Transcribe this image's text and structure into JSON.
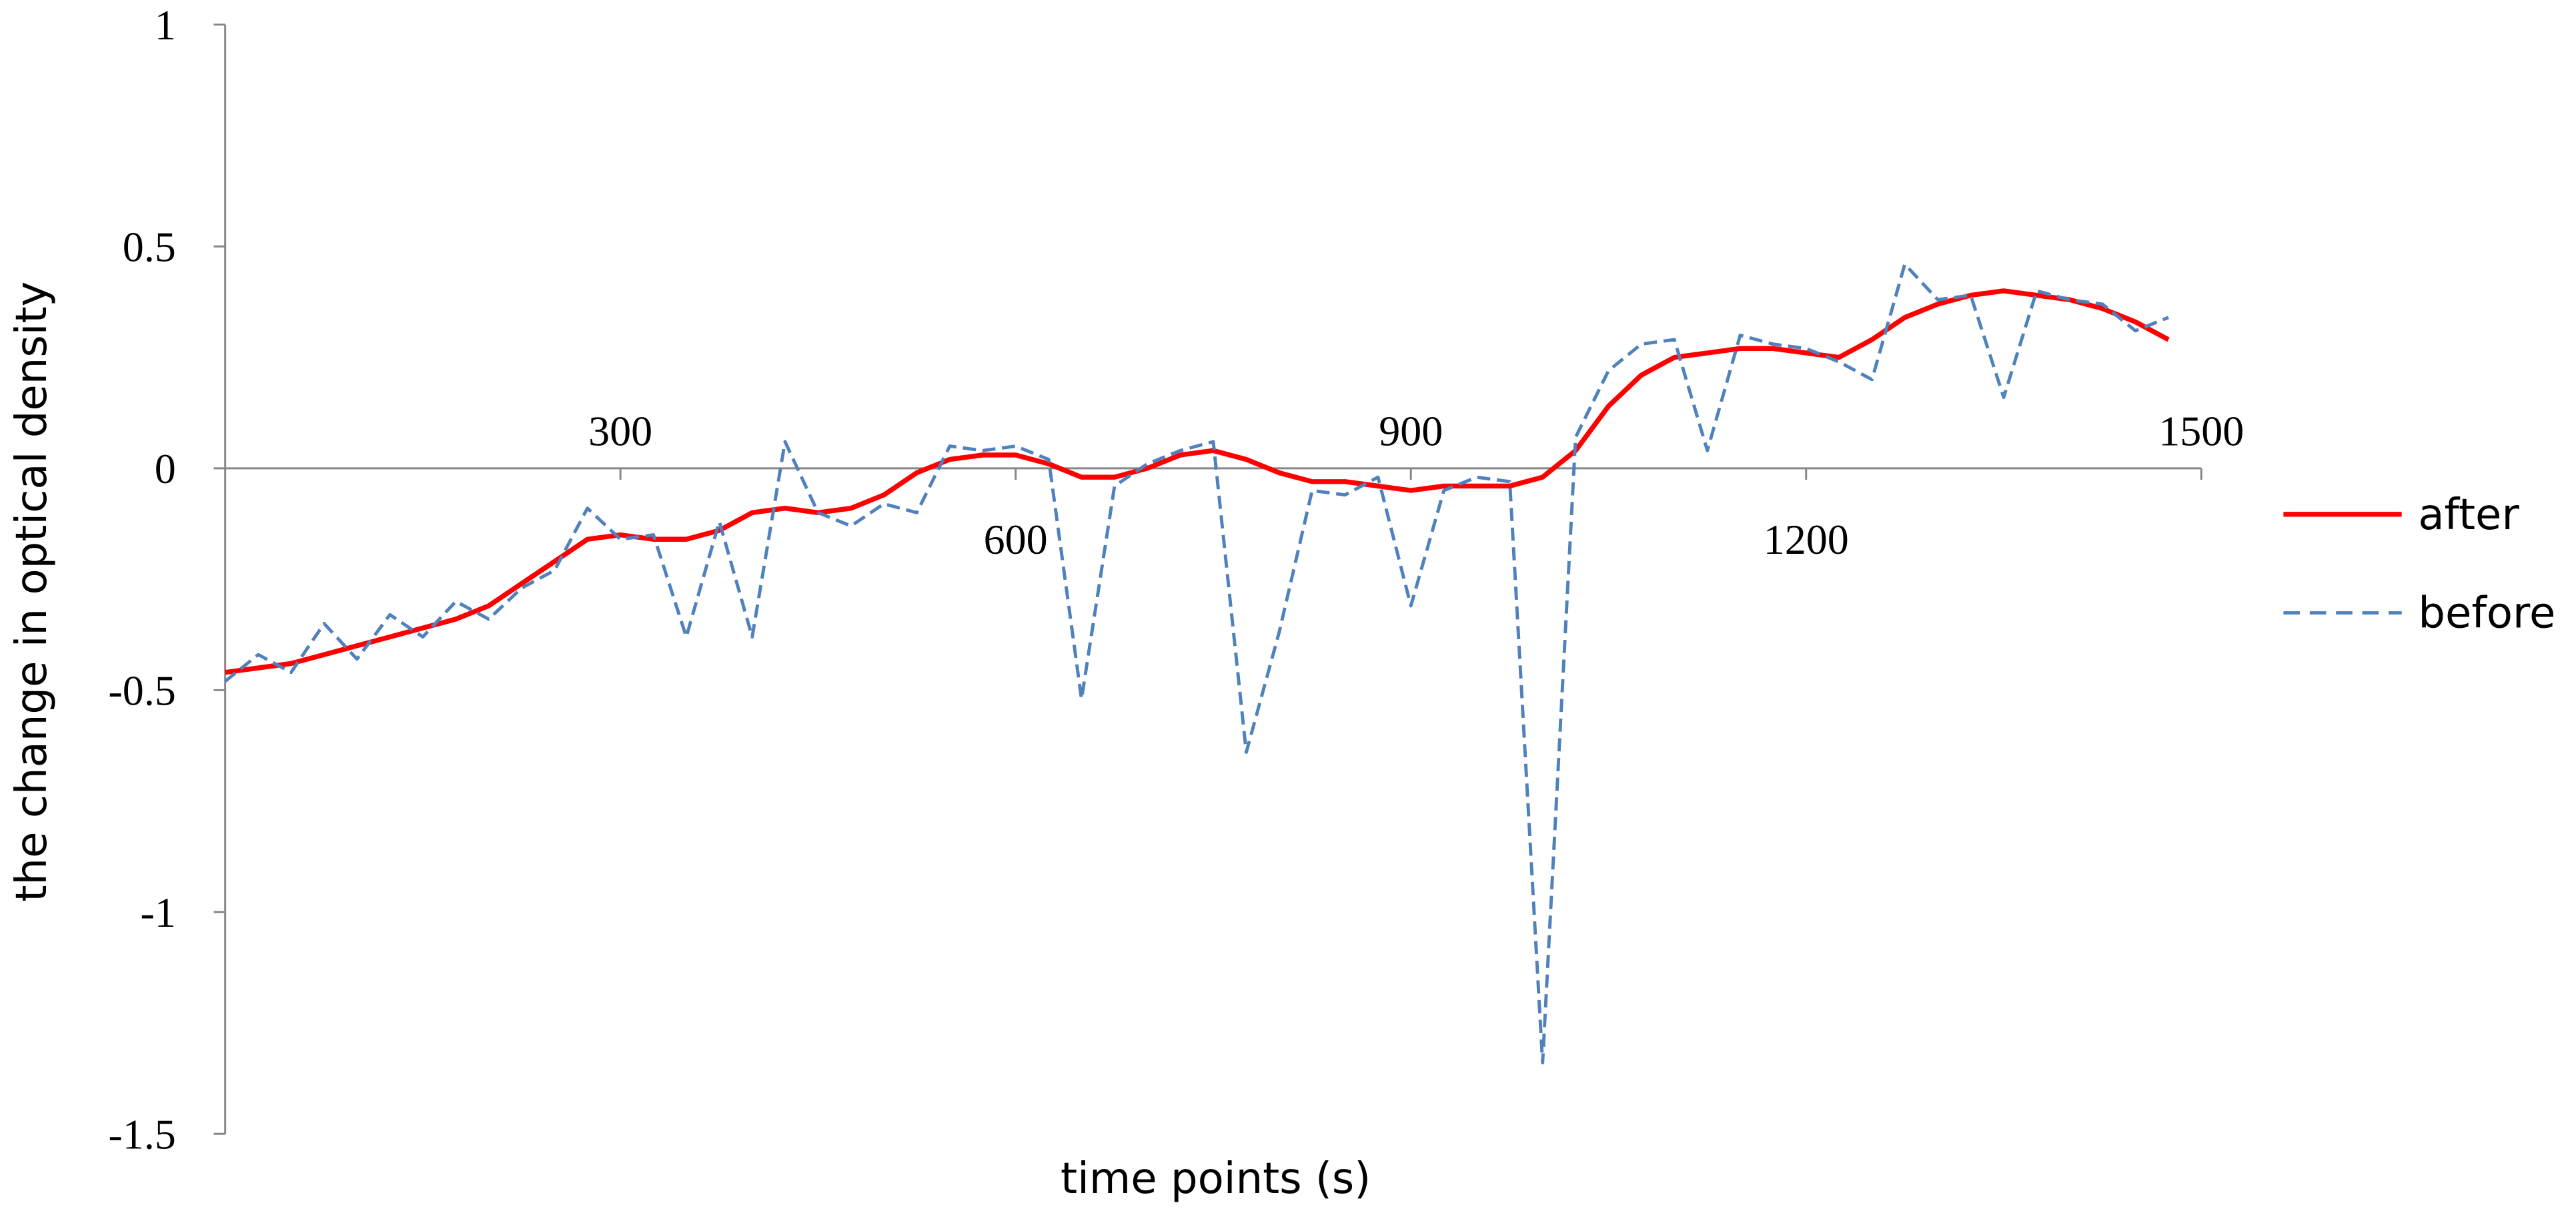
{
  "chart_data": {
    "type": "line",
    "x_label": "time points (s)",
    "y_label": "the change in optical density",
    "x": [
      0,
      25,
      50,
      75,
      100,
      125,
      150,
      175,
      200,
      225,
      250,
      275,
      300,
      325,
      350,
      375,
      400,
      425,
      450,
      475,
      500,
      525,
      550,
      575,
      600,
      625,
      650,
      675,
      700,
      725,
      750,
      775,
      800,
      825,
      850,
      875,
      900,
      925,
      950,
      975,
      1000,
      1025,
      1050,
      1075,
      1100,
      1125,
      1150,
      1175,
      1200,
      1225,
      1250,
      1275,
      1300,
      1325,
      1350,
      1375,
      1400,
      1425,
      1450,
      1475
    ],
    "series": [
      {
        "name": "after",
        "color": "#ff0000",
        "dash": false,
        "values": [
          -0.46,
          -0.45,
          -0.44,
          -0.42,
          -0.4,
          -0.38,
          -0.36,
          -0.34,
          -0.31,
          -0.26,
          -0.21,
          -0.16,
          -0.15,
          -0.16,
          -0.16,
          -0.14,
          -0.1,
          -0.09,
          -0.1,
          -0.09,
          -0.06,
          -0.01,
          0.02,
          0.03,
          0.03,
          0.01,
          -0.02,
          -0.02,
          0,
          0.03,
          0.04,
          0.02,
          -0.01,
          -0.03,
          -0.03,
          -0.04,
          -0.05,
          -0.04,
          -0.04,
          -0.04,
          -0.02,
          0.04,
          0.14,
          0.21,
          0.25,
          0.26,
          0.27,
          0.27,
          0.26,
          0.25,
          0.29,
          0.34,
          0.37,
          0.39,
          0.4,
          0.39,
          0.38,
          0.36,
          0.33,
          0.29
        ]
      },
      {
        "name": "before",
        "color": "#4f81bd",
        "dash": true,
        "values": [
          -0.48,
          -0.42,
          -0.46,
          -0.35,
          -0.43,
          -0.33,
          -0.38,
          -0.3,
          -0.34,
          -0.27,
          -0.23,
          -0.09,
          -0.16,
          -0.15,
          -0.38,
          -0.12,
          -0.38,
          0.06,
          -0.1,
          -0.13,
          -0.08,
          -0.1,
          0.05,
          0.04,
          0.05,
          0.02,
          -0.52,
          -0.04,
          0.01,
          0.04,
          0.06,
          -0.64,
          -0.37,
          -0.05,
          -0.06,
          -0.02,
          -0.31,
          -0.05,
          -0.02,
          -0.03,
          -1.34,
          0.07,
          0.22,
          0.28,
          0.29,
          0.04,
          0.3,
          0.28,
          0.27,
          0.24,
          0.2,
          0.46,
          0.38,
          0.39,
          0.16,
          0.4,
          0.38,
          0.37,
          0.31,
          0.34
        ]
      }
    ],
    "xlim": [
      0,
      1500
    ],
    "xticks": [
      300,
      600,
      900,
      1200,
      1500
    ],
    "ylim": [
      -1.5,
      1
    ],
    "yticks": [
      1,
      0.5,
      0,
      -0.5,
      -1,
      -1.5
    ],
    "legend": "right"
  }
}
